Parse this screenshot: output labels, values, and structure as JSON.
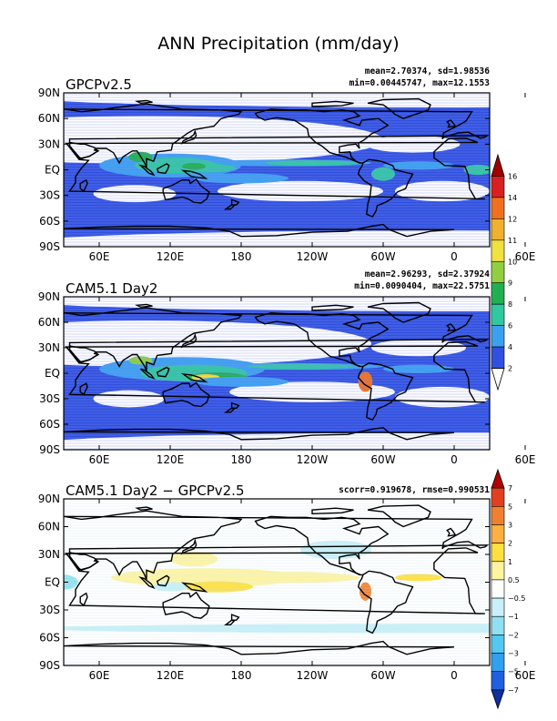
{
  "figure": {
    "title": "ANN Precipitation (mm/day)"
  },
  "x_ticks": [
    "60E",
    "120E",
    "180",
    "120W",
    "60W",
    "0",
    "60E"
  ],
  "y_ticks": [
    "90N",
    "60N",
    "30N",
    "EQ",
    "30S",
    "60S",
    "90S"
  ],
  "panels": [
    {
      "title": "GPCPv2.5",
      "stat_line1": "mean=2.70374, sd=1.98536",
      "stat_line2": "min=0.00445747, max=12.1553"
    },
    {
      "title": "CAM5.1  Day2",
      "stat_line1": "mean=2.96293, sd=2.37924",
      "stat_line2": "min=0.0090404, max=22.5751"
    },
    {
      "title": "CAM5.1  Day2  −  GPCPv2.5",
      "stat_line1": "scorr=0.919678, rmse=0.990531",
      "stat_line2": ""
    }
  ],
  "colorbar1": {
    "labels": [
      "2",
      "4",
      "6",
      "8",
      "9",
      "10",
      "11",
      "12",
      "14",
      "16"
    ],
    "colors": [
      "#ffffff",
      "#3050e0",
      "#3ca0f0",
      "#30c8a0",
      "#20b050",
      "#90d040",
      "#f0e040",
      "#f0b030",
      "#f07020",
      "#d82020",
      "#a00000"
    ]
  },
  "colorbar2": {
    "labels": [
      "−7",
      "−5",
      "−3",
      "−2",
      "−1",
      "−0.5",
      "0.5",
      "1",
      "2",
      "3",
      "5",
      "7"
    ],
    "colors": [
      "#1030a0",
      "#2060e0",
      "#30a0f0",
      "#50c8f0",
      "#90e0f0",
      "#c8f0f8",
      "#ffffff",
      "#fff4a0",
      "#ffe040",
      "#ffb040",
      "#f08030",
      "#e04020",
      "#b00000"
    ]
  },
  "chart_data": {
    "type": "heatmap",
    "panels": [
      {
        "name": "GPCPv2.5",
        "mean": 2.70374,
        "sd": 1.98536,
        "min": 0.00445747,
        "max": 12.1553
      },
      {
        "name": "CAM5.1 Day2",
        "mean": 2.96293,
        "sd": 2.37924,
        "min": 0.0090404,
        "max": 22.5751
      },
      {
        "name": "CAM5.1 Day2 - GPCPv2.5",
        "scorr": 0.919678,
        "rmse": 0.990531
      }
    ],
    "lon_range": [
      "30E",
      "390E"
    ],
    "lat_range": [
      -90,
      90
    ]
  }
}
